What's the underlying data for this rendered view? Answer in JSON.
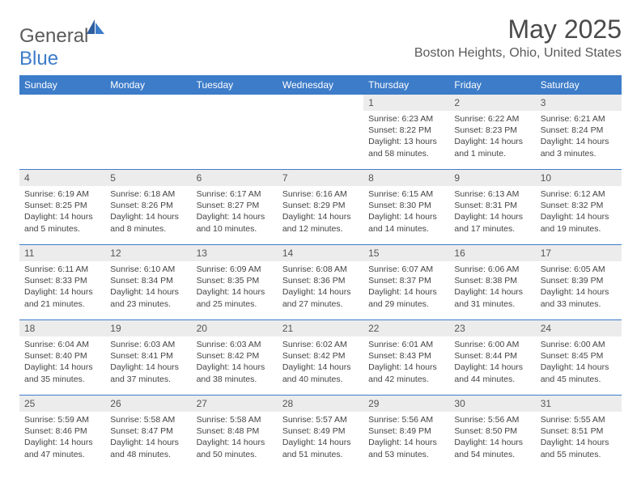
{
  "logo": {
    "text1": "General",
    "text2": "Blue"
  },
  "title": "May 2025",
  "location": "Boston Heights, Ohio, United States",
  "colors": {
    "header_bg": "#3d7cc9",
    "daynum_bg": "#ececec",
    "text": "#4a4a4a"
  },
  "day_names": [
    "Sunday",
    "Monday",
    "Tuesday",
    "Wednesday",
    "Thursday",
    "Friday",
    "Saturday"
  ],
  "weeks": [
    [
      {
        "empty": true
      },
      {
        "empty": true
      },
      {
        "empty": true
      },
      {
        "empty": true
      },
      {
        "n": "1",
        "sr": "6:23 AM",
        "ss": "8:22 PM",
        "dl": "13 hours and 58 minutes."
      },
      {
        "n": "2",
        "sr": "6:22 AM",
        "ss": "8:23 PM",
        "dl": "14 hours and 1 minute."
      },
      {
        "n": "3",
        "sr": "6:21 AM",
        "ss": "8:24 PM",
        "dl": "14 hours and 3 minutes."
      }
    ],
    [
      {
        "n": "4",
        "sr": "6:19 AM",
        "ss": "8:25 PM",
        "dl": "14 hours and 5 minutes."
      },
      {
        "n": "5",
        "sr": "6:18 AM",
        "ss": "8:26 PM",
        "dl": "14 hours and 8 minutes."
      },
      {
        "n": "6",
        "sr": "6:17 AM",
        "ss": "8:27 PM",
        "dl": "14 hours and 10 minutes."
      },
      {
        "n": "7",
        "sr": "6:16 AM",
        "ss": "8:29 PM",
        "dl": "14 hours and 12 minutes."
      },
      {
        "n": "8",
        "sr": "6:15 AM",
        "ss": "8:30 PM",
        "dl": "14 hours and 14 minutes."
      },
      {
        "n": "9",
        "sr": "6:13 AM",
        "ss": "8:31 PM",
        "dl": "14 hours and 17 minutes."
      },
      {
        "n": "10",
        "sr": "6:12 AM",
        "ss": "8:32 PM",
        "dl": "14 hours and 19 minutes."
      }
    ],
    [
      {
        "n": "11",
        "sr": "6:11 AM",
        "ss": "8:33 PM",
        "dl": "14 hours and 21 minutes."
      },
      {
        "n": "12",
        "sr": "6:10 AM",
        "ss": "8:34 PM",
        "dl": "14 hours and 23 minutes."
      },
      {
        "n": "13",
        "sr": "6:09 AM",
        "ss": "8:35 PM",
        "dl": "14 hours and 25 minutes."
      },
      {
        "n": "14",
        "sr": "6:08 AM",
        "ss": "8:36 PM",
        "dl": "14 hours and 27 minutes."
      },
      {
        "n": "15",
        "sr": "6:07 AM",
        "ss": "8:37 PM",
        "dl": "14 hours and 29 minutes."
      },
      {
        "n": "16",
        "sr": "6:06 AM",
        "ss": "8:38 PM",
        "dl": "14 hours and 31 minutes."
      },
      {
        "n": "17",
        "sr": "6:05 AM",
        "ss": "8:39 PM",
        "dl": "14 hours and 33 minutes."
      }
    ],
    [
      {
        "n": "18",
        "sr": "6:04 AM",
        "ss": "8:40 PM",
        "dl": "14 hours and 35 minutes."
      },
      {
        "n": "19",
        "sr": "6:03 AM",
        "ss": "8:41 PM",
        "dl": "14 hours and 37 minutes."
      },
      {
        "n": "20",
        "sr": "6:03 AM",
        "ss": "8:42 PM",
        "dl": "14 hours and 38 minutes."
      },
      {
        "n": "21",
        "sr": "6:02 AM",
        "ss": "8:42 PM",
        "dl": "14 hours and 40 minutes."
      },
      {
        "n": "22",
        "sr": "6:01 AM",
        "ss": "8:43 PM",
        "dl": "14 hours and 42 minutes."
      },
      {
        "n": "23",
        "sr": "6:00 AM",
        "ss": "8:44 PM",
        "dl": "14 hours and 44 minutes."
      },
      {
        "n": "24",
        "sr": "6:00 AM",
        "ss": "8:45 PM",
        "dl": "14 hours and 45 minutes."
      }
    ],
    [
      {
        "n": "25",
        "sr": "5:59 AM",
        "ss": "8:46 PM",
        "dl": "14 hours and 47 minutes."
      },
      {
        "n": "26",
        "sr": "5:58 AM",
        "ss": "8:47 PM",
        "dl": "14 hours and 48 minutes."
      },
      {
        "n": "27",
        "sr": "5:58 AM",
        "ss": "8:48 PM",
        "dl": "14 hours and 50 minutes."
      },
      {
        "n": "28",
        "sr": "5:57 AM",
        "ss": "8:49 PM",
        "dl": "14 hours and 51 minutes."
      },
      {
        "n": "29",
        "sr": "5:56 AM",
        "ss": "8:49 PM",
        "dl": "14 hours and 53 minutes."
      },
      {
        "n": "30",
        "sr": "5:56 AM",
        "ss": "8:50 PM",
        "dl": "14 hours and 54 minutes."
      },
      {
        "n": "31",
        "sr": "5:55 AM",
        "ss": "8:51 PM",
        "dl": "14 hours and 55 minutes."
      }
    ]
  ],
  "labels": {
    "sunrise": "Sunrise:",
    "sunset": "Sunset:",
    "daylight": "Daylight:"
  }
}
